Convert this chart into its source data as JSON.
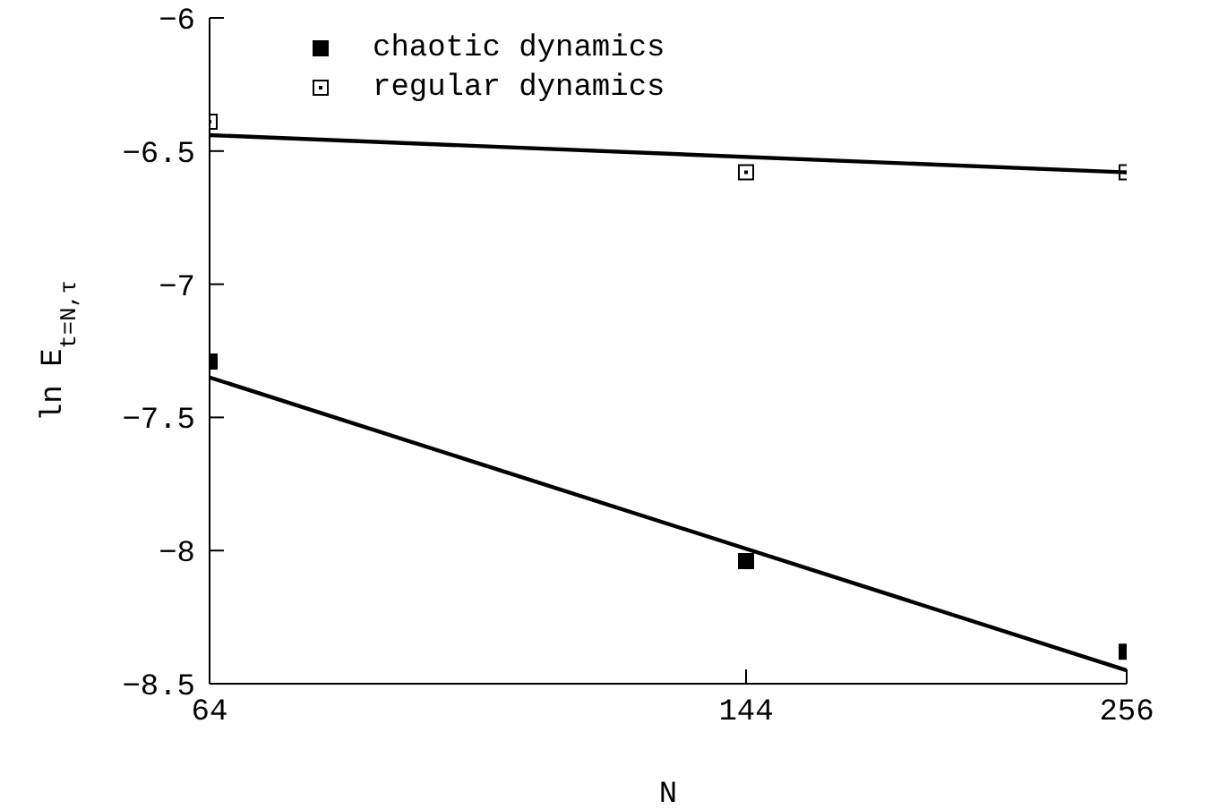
{
  "chart_data": {
    "type": "scatter",
    "xlabel": "N",
    "ylabel": "ln E$_{t=N,τ}$",
    "log": "x",
    "xlim": [
      64,
      256
    ],
    "xticks": [
      64,
      144,
      256
    ],
    "ylim": [
      -8.5,
      -6
    ],
    "yticks": [
      -8.5,
      -8,
      -7.5,
      -7,
      -6.5,
      -6
    ],
    "grid": false,
    "legend": "top left",
    "series": [
      {
        "name": "chaotic dynamics",
        "marker": "square",
        "color": "#000000",
        "x": [
          64,
          144,
          256
        ],
        "values": [
          -7.29,
          -8.04,
          -8.38
        ]
      },
      {
        "name": "regular dynamics",
        "marker": "square",
        "color": "#000000",
        "x": [
          64,
          144,
          256
        ],
        "values": [
          -6.39,
          -6.58,
          -6.58
        ]
      },
      {
        "type": "line",
        "color": "#000000",
        "x": [
          64,
          256
        ],
        "values": [
          -7.35,
          -8.45
        ]
      },
      {
        "type": "line",
        "color": "#000000",
        "x": [
          64,
          256
        ],
        "values": [
          -6.44,
          -6.58
        ]
      }
    ]
  }
}
